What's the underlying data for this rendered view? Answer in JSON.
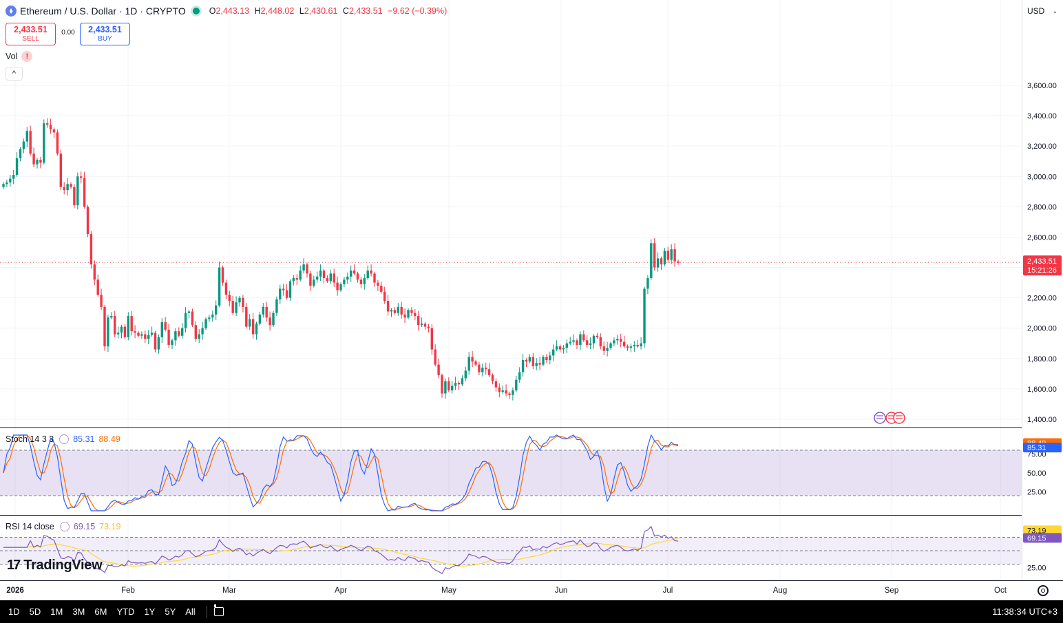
{
  "header": {
    "symbol_name": "Ethereum / U.S. Dollar",
    "interval": "1D",
    "exchange": "CRYPTO",
    "o_label": "O",
    "open": "2,443.13",
    "h_label": "H",
    "high": "2,448.02",
    "l_label": "L",
    "low": "2,430.61",
    "c_label": "C",
    "close": "2,433.51",
    "change": "−9.62 (−0.39%)"
  },
  "trade": {
    "sell_price": "2,433.51",
    "sell_label": "SELL",
    "spread": "0.00",
    "buy_price": "2,433.51",
    "buy_label": "BUY"
  },
  "volume_label": "Vol",
  "currency": "USD",
  "stoch": {
    "label": "Stoch 14 3 3",
    "k": "85.31",
    "d": "88.49"
  },
  "rsi": {
    "label": "RSI 14 close",
    "value": "69.15",
    "ma": "73.19"
  },
  "price_tag": {
    "price": "2,433.51",
    "countdown": "15:21:26"
  },
  "brand": "TradingView",
  "timeframes": [
    "1D",
    "5D",
    "1M",
    "3M",
    "6M",
    "YTD",
    "1Y",
    "5Y",
    "All"
  ],
  "clock": "11:38:34 UTC+3",
  "colors": {
    "up": "#089981",
    "down": "#f23645",
    "stoch_k": "#2962ff",
    "stoch_d": "#ff6d00",
    "rsi": "#7e57c2",
    "rsi_ma": "#fdd835",
    "band": "#7e57c2"
  },
  "chart_data": {
    "type": "candlestick",
    "x_labels": [
      "2026",
      "Feb",
      "Mar",
      "Apr",
      "May",
      "Jun",
      "Jul",
      "Aug",
      "Sep",
      "Oct"
    ],
    "y_ticks": [
      "1,400.00",
      "1,600.00",
      "1,800.00",
      "2,000.00",
      "2,200.00",
      "2,400.00",
      "2,600.00",
      "2,800.00",
      "3,000.00",
      "3,200.00",
      "3,400.00",
      "3,600.00"
    ],
    "y_tick_values": [
      1400,
      1600,
      1800,
      2000,
      2200,
      2400,
      2600,
      2800,
      3000,
      3200,
      3400,
      3600
    ],
    "last_price": 2433.51,
    "close": [
      2950,
      2960,
      2985,
      3010,
      3120,
      3180,
      3230,
      3300,
      3150,
      3080,
      3110,
      3090,
      3350,
      3340,
      3310,
      3290,
      3150,
      2930,
      2910,
      2950,
      2930,
      2810,
      3000,
      2990,
      2800,
      2620,
      2420,
      2320,
      2220,
      2140,
      1880,
      2070,
      2080,
      1960,
      1970,
      2010,
      1940,
      2080,
      1980,
      1970,
      1950,
      1960,
      1930,
      1955,
      1970,
      1860,
      1940,
      2040,
      1990,
      1890,
      1920,
      1980,
      1950,
      2000,
      2100,
      2110,
      2020,
      1930,
      1960,
      2000,
      2060,
      2070,
      2090,
      2150,
      2400,
      2300,
      2220,
      2180,
      2100,
      2170,
      2200,
      2140,
      2010,
      2060,
      1960,
      2030,
      2090,
      2140,
      2070,
      2020,
      2100,
      2190,
      2260,
      2250,
      2200,
      2310,
      2330,
      2320,
      2380,
      2420,
      2360,
      2280,
      2320,
      2340,
      2380,
      2330,
      2310,
      2360,
      2300,
      2250,
      2290,
      2320,
      2340,
      2380,
      2360,
      2320,
      2290,
      2330,
      2380,
      2360,
      2300,
      2280,
      2240,
      2180,
      2110,
      2120,
      2100,
      2140,
      2090,
      2070,
      2120,
      2100,
      2080,
      2020,
      2030,
      2010,
      2000,
      1860,
      1760,
      1690,
      1570,
      1650,
      1590,
      1620,
      1640,
      1630,
      1670,
      1720,
      1810,
      1780,
      1760,
      1710,
      1740,
      1730,
      1690,
      1650,
      1610,
      1580,
      1590,
      1570,
      1560,
      1590,
      1660,
      1710,
      1790,
      1780,
      1810,
      1750,
      1770,
      1760,
      1810,
      1790,
      1820,
      1860,
      1880,
      1860,
      1870,
      1900,
      1910,
      1920,
      1890,
      1960,
      1920,
      1890,
      1900,
      1950,
      1940,
      1880,
      1850,
      1870,
      1900,
      1920,
      1930,
      1910,
      1880,
      1870,
      1880,
      1890,
      1880,
      1900,
      2260,
      2330,
      2560,
      2400,
      2460,
      2420,
      2510,
      2450,
      2520,
      2440,
      2430
    ],
    "stoch": {
      "upper": 80,
      "lower": 20,
      "k_last": 85.31,
      "d_last": 88.49,
      "ticks": [
        "25.00",
        "50.00",
        "75.00"
      ]
    },
    "rsi": {
      "upper": 70,
      "middle": 50,
      "lower": 30,
      "value_last": 69.15,
      "ma_last": 73.19,
      "ticks": [
        "25.00"
      ]
    }
  }
}
